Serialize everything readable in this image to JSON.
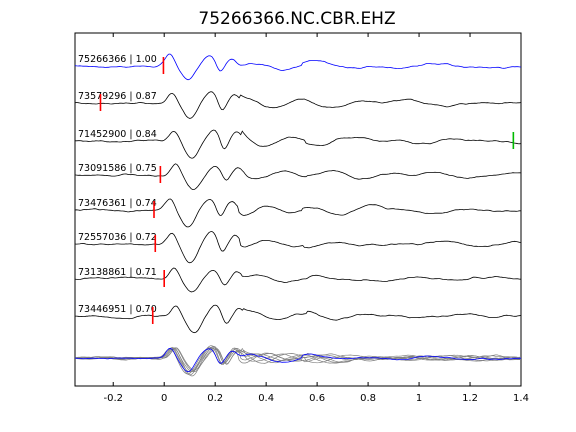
{
  "chart_data": {
    "type": "line",
    "title": "75266366.NC.CBR.EHZ",
    "xlabel": "",
    "ylabel": "",
    "xlim": [
      -0.35,
      1.4
    ],
    "x_ticks": [
      -0.2,
      0,
      0.2,
      0.4,
      0.6,
      0.8,
      1,
      1.2,
      1.4
    ],
    "x_tick_labels": [
      "-0.2",
      "0",
      "0.2",
      "0.4",
      "0.6",
      "0.8",
      "1",
      "1.2",
      "1.4"
    ],
    "grid": false,
    "colors": {
      "reference": "#0000ff",
      "trace": "#000000",
      "stack": "#808080",
      "p_pick": "#ff0000",
      "s_pick": "#00bb00"
    },
    "series": [
      {
        "name": "75266366 | 1.00",
        "pick": -0.003,
        "variant": 0
      },
      {
        "name": "73579296 | 0.87",
        "pick": -0.25,
        "variant": 1
      },
      {
        "name": "71452900 | 0.84",
        "pick": null,
        "s_pick": 1.37,
        "variant": 2
      },
      {
        "name": "73091586 | 0.75",
        "pick": -0.015,
        "variant": 3
      },
      {
        "name": "73476361 | 0.74",
        "pick": -0.04,
        "variant": 4
      },
      {
        "name": "72557036 | 0.72",
        "pick": -0.035,
        "variant": 5
      },
      {
        "name": "73138861 | 0.71",
        "pick": 0.0,
        "variant": 6
      },
      {
        "name": "73446951 | 0.70",
        "pick": -0.045,
        "variant": 7
      }
    ]
  }
}
